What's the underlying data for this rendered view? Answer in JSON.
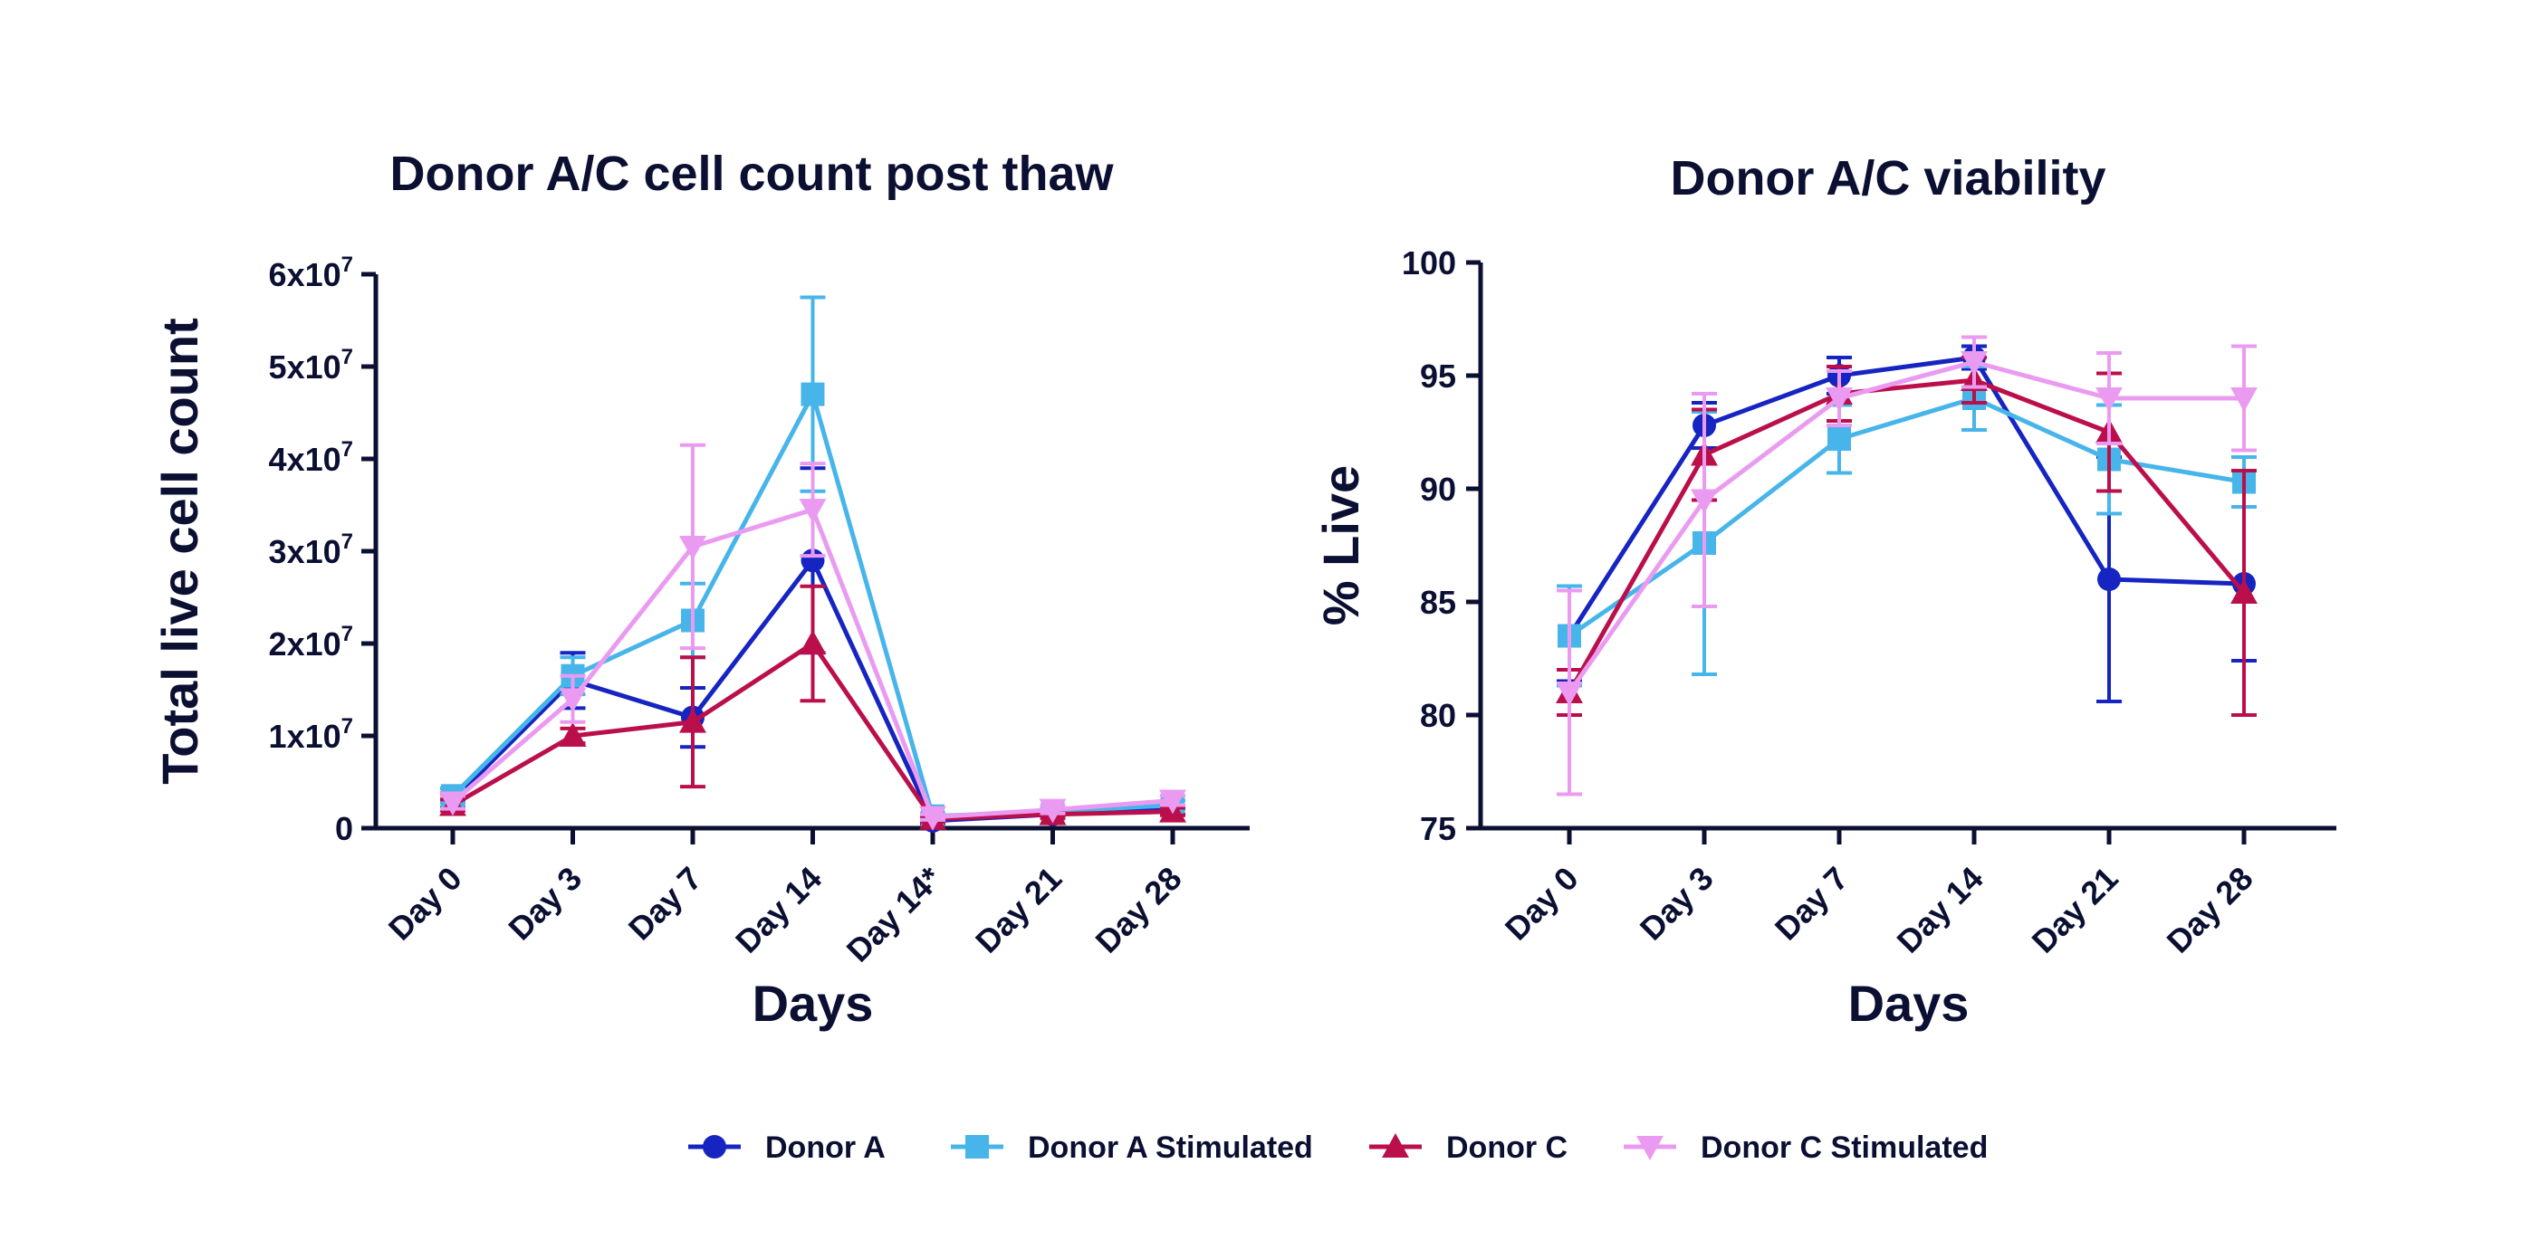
{
  "colors": {
    "ink": "#0b1033",
    "donor_a": "#1624c2",
    "donor_a_stim": "#47b5ea",
    "donor_c": "#bb0f4b",
    "donor_c_stim": "#ea9bf1"
  },
  "legend": [
    {
      "name": "Donor A",
      "marker": "circle",
      "color_key": "donor_a"
    },
    {
      "name": "Donor A Stimulated",
      "marker": "square",
      "color_key": "donor_a_stim"
    },
    {
      "name": "Donor C",
      "marker": "triangle-up",
      "color_key": "donor_c"
    },
    {
      "name": "Donor C Stimulated",
      "marker": "triangle-down",
      "color_key": "donor_c_stim"
    }
  ],
  "chart_data": [
    {
      "type": "line",
      "title": "Donor A/C cell count post thaw",
      "xlabel": "Days",
      "ylabel": "Total live cell count",
      "categories": [
        "Day 0",
        "Day 3",
        "Day 7",
        "Day 14",
        "Day 14*",
        "Day 21",
        "Day 28"
      ],
      "ylim": [
        0,
        60000000
      ],
      "yticks": [
        0,
        10000000,
        20000000,
        30000000,
        40000000,
        50000000,
        60000000
      ],
      "ytick_labels": [
        {
          "base": "0",
          "exp": ""
        },
        {
          "base": "1x10",
          "exp": "7"
        },
        {
          "base": "2x10",
          "exp": "7"
        },
        {
          "base": "3x10",
          "exp": "7"
        },
        {
          "base": "4x10",
          "exp": "7"
        },
        {
          "base": "5x10",
          "exp": "7"
        },
        {
          "base": "6x10",
          "exp": "7"
        }
      ],
      "series": [
        {
          "name": "Donor A",
          "color_key": "donor_a",
          "marker": "circle",
          "values": [
            3000000,
            16000000,
            12000000,
            29000000,
            800000,
            1500000,
            2000000
          ],
          "errors": [
            800000,
            3000000,
            3200000,
            10000000,
            300000,
            400000,
            500000
          ]
        },
        {
          "name": "Donor A Stimulated",
          "color_key": "donor_a_stim",
          "marker": "square",
          "values": [
            3500000,
            16500000,
            22500000,
            47000000,
            1300000,
            1800000,
            2500000
          ],
          "errors": [
            800000,
            2000000,
            4000000,
            10500000,
            300000,
            400000,
            500000
          ]
        },
        {
          "name": "Donor C",
          "color_key": "donor_c",
          "marker": "triangle-up",
          "values": [
            2500000,
            10000000,
            11500000,
            20000000,
            1000000,
            1500000,
            1800000
          ],
          "errors": [
            600000,
            800000,
            7000000,
            6200000,
            300000,
            400000,
            400000
          ]
        },
        {
          "name": "Donor C Stimulated",
          "color_key": "donor_c_stim",
          "marker": "triangle-down",
          "values": [
            2800000,
            14000000,
            30500000,
            34500000,
            1200000,
            2000000,
            3000000
          ],
          "errors": [
            700000,
            2500000,
            11000000,
            5000000,
            300000,
            400000,
            500000
          ]
        }
      ]
    },
    {
      "type": "line",
      "title": "Donor A/C viability",
      "xlabel": "Days",
      "ylabel": "% Live",
      "categories": [
        "Day 0",
        "Day 3",
        "Day 7",
        "Day 14",
        "Day 21",
        "Day 28"
      ],
      "ylim": [
        75,
        100
      ],
      "yticks": [
        75,
        80,
        85,
        90,
        95,
        100
      ],
      "ytick_labels": [
        {
          "base": "75",
          "exp": ""
        },
        {
          "base": "80",
          "exp": ""
        },
        {
          "base": "85",
          "exp": ""
        },
        {
          "base": "90",
          "exp": ""
        },
        {
          "base": "95",
          "exp": ""
        },
        {
          "base": "100",
          "exp": ""
        }
      ],
      "series": [
        {
          "name": "Donor A",
          "color_key": "donor_a",
          "marker": "circle",
          "values": [
            83.5,
            92.8,
            95.0,
            95.8,
            86.0,
            85.8
          ],
          "errors": [
            2.0,
            1.0,
            0.8,
            0.5,
            5.4,
            3.4
          ]
        },
        {
          "name": "Donor A Stimulated",
          "color_key": "donor_a_stim",
          "marker": "square",
          "values": [
            83.5,
            87.6,
            92.2,
            94.0,
            91.3,
            90.3
          ],
          "errors": [
            2.2,
            5.8,
            1.5,
            1.4,
            2.4,
            1.1
          ]
        },
        {
          "name": "Donor C",
          "color_key": "donor_c",
          "marker": "triangle-up",
          "values": [
            81.0,
            91.5,
            94.2,
            94.8,
            92.5,
            85.4
          ],
          "errors": [
            1.0,
            2.0,
            1.2,
            1.0,
            2.6,
            5.4
          ]
        },
        {
          "name": "Donor C Stimulated",
          "color_key": "donor_c_stim",
          "marker": "triangle-down",
          "values": [
            81.0,
            89.5,
            94.0,
            95.6,
            94.0,
            94.0
          ],
          "errors": [
            4.5,
            4.7,
            1.2,
            1.1,
            2.0,
            2.3
          ]
        }
      ]
    }
  ]
}
